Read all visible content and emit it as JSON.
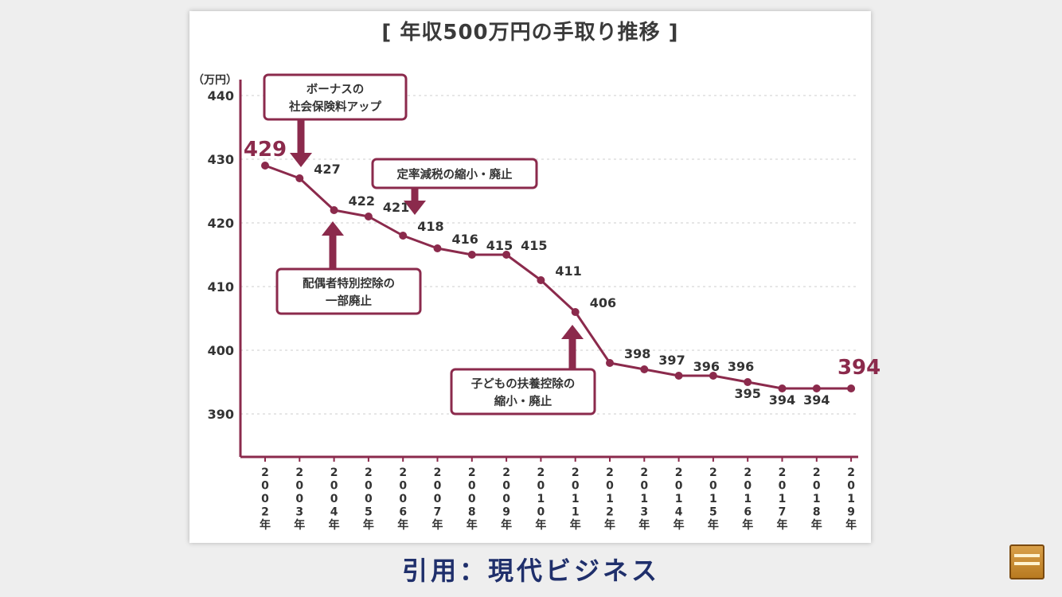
{
  "title": "[ 年収500万円の手取り推移 ]",
  "unit_label": "（万円）",
  "source_label": "引用：現代ビジネス",
  "colors": {
    "line": "#8b2a4c",
    "box_border": "#8b2a4c",
    "text": "#333333",
    "grid": "#d8d8d8"
  },
  "icons": {
    "corner_logo": "channel-logo-icon"
  },
  "chart_data": {
    "type": "line",
    "title": "[ 年収500万円の手取り推移 ]",
    "ylabel": "（万円）",
    "xlabel": "",
    "ylim": [
      380,
      440
    ],
    "y_ticks": [
      390,
      400,
      410,
      420,
      430,
      440
    ],
    "grid": "horizontal dotted",
    "x": [
      "2002年",
      "2003年",
      "2004年",
      "2005年",
      "2006年",
      "2007年",
      "2008年",
      "2009年",
      "2010年",
      "2011年",
      "2012年",
      "2013年",
      "2014年",
      "2015年",
      "2016年",
      "2017年",
      "2018年",
      "2019年"
    ],
    "values": [
      429,
      427,
      422,
      421,
      418,
      416,
      415,
      415,
      411,
      406,
      398,
      397,
      396,
      396,
      395,
      394,
      394,
      394
    ],
    "data_labels": [
      "429",
      "427",
      "422",
      "421",
      "418",
      "416",
      "415",
      "415",
      "411",
      "406",
      "398",
      "397",
      "396",
      "396",
      "395",
      "394",
      "394",
      "394"
    ],
    "annotations": [
      {
        "text_lines": [
          "ボーナスの",
          "社会保険料アップ"
        ],
        "target_index": 1
      },
      {
        "text_lines": [
          "定率減税の縮小・廃止"
        ],
        "target_index": 4
      },
      {
        "text_lines": [
          "配偶者特別控除の",
          "一部廃止"
        ],
        "target_index": 2
      },
      {
        "text_lines": [
          "子どもの扶養控除の",
          "縮小・廃止"
        ],
        "target_index": 9
      }
    ]
  }
}
